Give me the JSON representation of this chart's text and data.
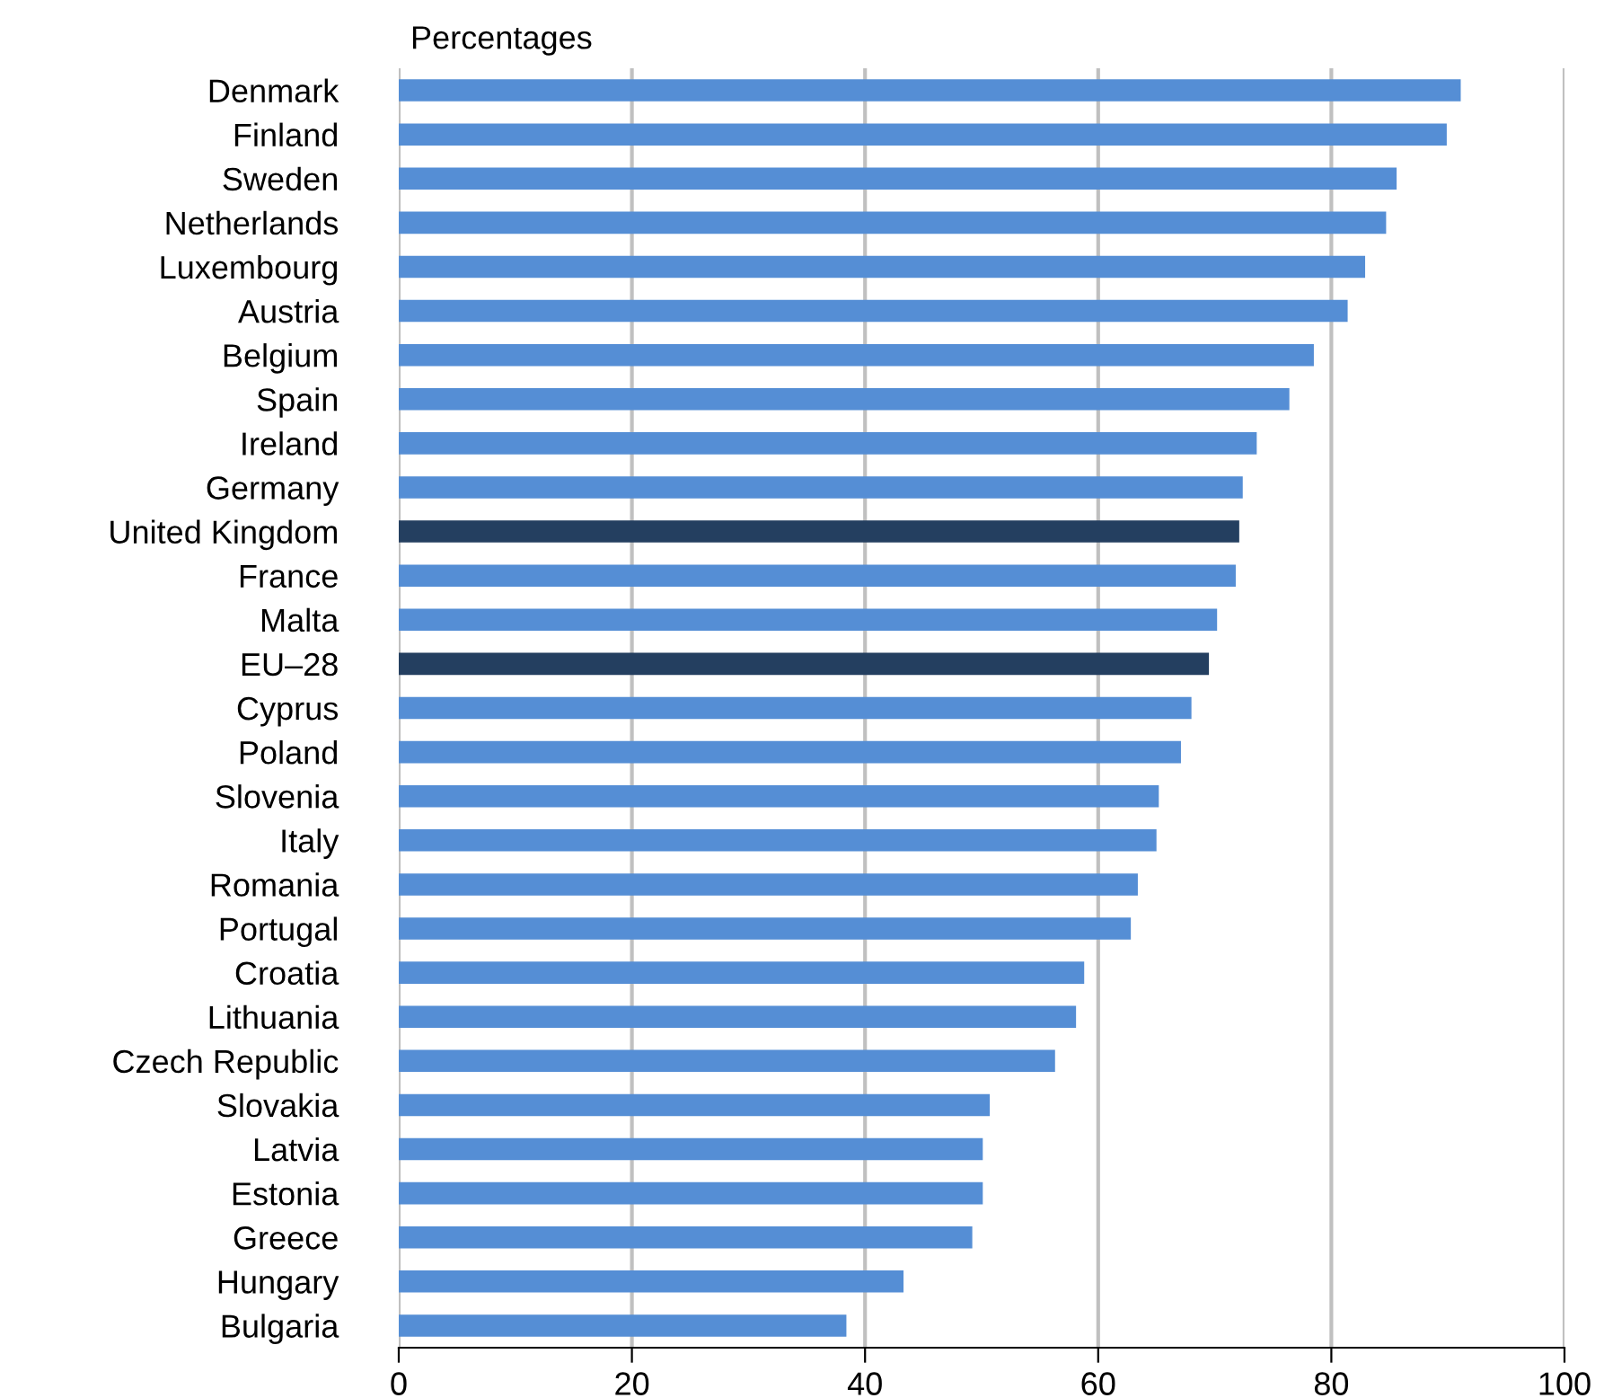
{
  "chart_data": {
    "type": "bar",
    "orientation": "horizontal",
    "ylabel": "Percentages",
    "categories": [
      "Denmark",
      "Finland",
      "Sweden",
      "Netherlands",
      "Luxembourg",
      "Austria",
      "Belgium",
      "Spain",
      "Ireland",
      "Germany",
      "United Kingdom",
      "France",
      "Malta",
      "EU–28",
      "Cyprus",
      "Poland",
      "Slovenia",
      "Italy",
      "Romania",
      "Portugal",
      "Croatia",
      "Lithuania",
      "Czech Republic",
      "Slovakia",
      "Latvia",
      "Estonia",
      "Greece",
      "Hungary",
      "Bulgaria"
    ],
    "values": [
      91.1,
      89.9,
      85.6,
      84.7,
      82.9,
      81.4,
      78.5,
      76.4,
      73.6,
      72.4,
      72.1,
      71.8,
      70.2,
      69.5,
      68.0,
      67.1,
      65.2,
      65.0,
      63.4,
      62.8,
      58.8,
      58.1,
      56.3,
      50.7,
      50.1,
      50.1,
      49.2,
      43.3,
      38.4
    ],
    "colors": [
      "#558ed5",
      "#558ed5",
      "#558ed5",
      "#558ed5",
      "#558ed5",
      "#558ed5",
      "#558ed5",
      "#558ed5",
      "#558ed5",
      "#558ed5",
      "#243f60",
      "#558ed5",
      "#558ed5",
      "#243f60",
      "#558ed5",
      "#558ed5",
      "#558ed5",
      "#558ed5",
      "#558ed5",
      "#558ed5",
      "#558ed5",
      "#558ed5",
      "#558ed5",
      "#558ed5",
      "#558ed5",
      "#558ed5",
      "#558ed5",
      "#558ed5",
      "#558ed5"
    ],
    "xlim": [
      0,
      100
    ],
    "xticks": [
      0,
      20,
      40,
      60,
      80,
      100
    ],
    "grid": "x"
  }
}
